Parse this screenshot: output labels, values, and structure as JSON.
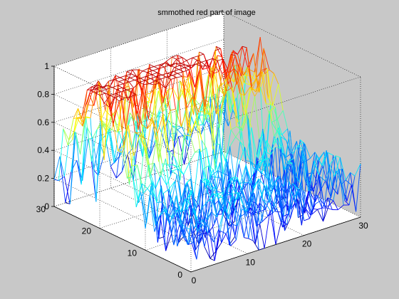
{
  "chart_data": {
    "type": "mesh3d",
    "title": "smmothed red part of image",
    "xlabel": "",
    "ylabel": "",
    "zlabel": "",
    "xlim": [
      0,
      30
    ],
    "ylim": [
      0,
      30
    ],
    "zlim": [
      0,
      1
    ],
    "xticks": [
      0,
      10,
      20,
      30
    ],
    "yticks": [
      0,
      10,
      20,
      30
    ],
    "zticks": [
      0,
      0.2,
      0.4,
      0.6,
      0.8,
      1
    ],
    "grid": true,
    "colormap": "jet",
    "surface": {
      "rows": 30,
      "cols": 30,
      "description": "noisy wireframe mesh of smoothed red channel values, high ridge (~0.85-0.95) in the back region, valleys near 0 in front"
    }
  },
  "colors": {
    "figure_background": "#c8c8c8",
    "axes_background": "#ffffff",
    "jet_low": "#0000a0",
    "jet_mid": "#00e0e0",
    "jet_high": "#a00000"
  }
}
